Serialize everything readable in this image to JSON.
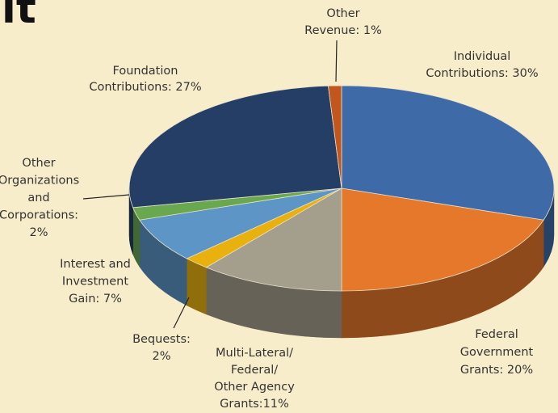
{
  "chart_data": {
    "type": "pie3d",
    "title": "it",
    "values": [
      30,
      20,
      11,
      2,
      7,
      2,
      27,
      1
    ],
    "value_labels": [
      [
        "Individual",
        "Contributions: 30%"
      ],
      [
        "Federal",
        "Government",
        "Grants: 20%"
      ],
      [
        "Multi-Lateral/",
        "Federal/",
        "Other Agency",
        "Grants:11%"
      ],
      [
        "Bequests:",
        "2%"
      ],
      [
        "Interest and",
        "Investment",
        "Gain: 7%"
      ],
      [
        "Other",
        "Organizations",
        "and",
        "Corporations:",
        "2%"
      ],
      [
        "Foundation",
        "Contributions: 27%"
      ],
      [
        "Other",
        "Revenue: 1%"
      ]
    ],
    "colors": [
      "#3f6aa8",
      "#e5782a",
      "#a49e8c",
      "#e8b10f",
      "#5c95c6",
      "#6aa84f",
      "#243e66",
      "#c2561c"
    ]
  }
}
